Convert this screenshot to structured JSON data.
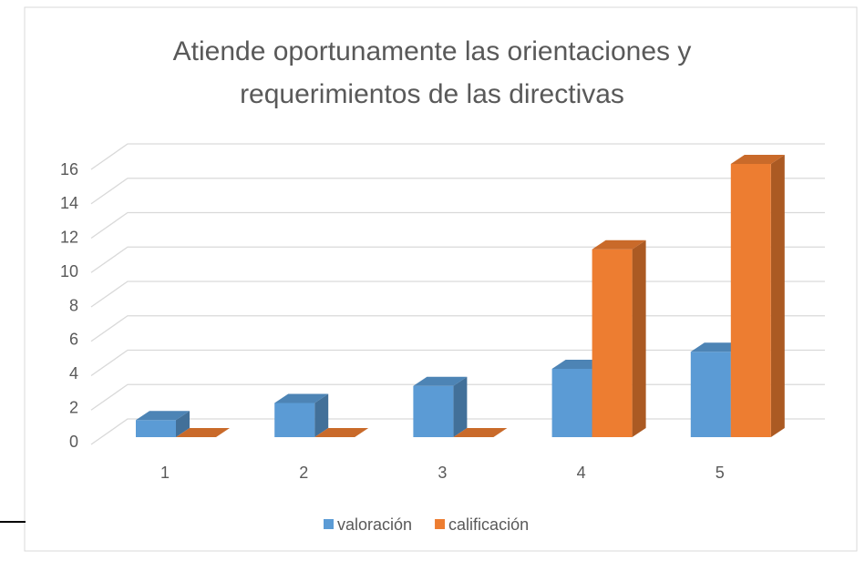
{
  "chart_data": {
    "type": "bar3d",
    "title": [
      "Atiende oportunamente las orientaciones y",
      "requerimientos de las directivas"
    ],
    "categories": [
      "1",
      "2",
      "3",
      "4",
      "5"
    ],
    "series": [
      {
        "name": "valoración",
        "color": "#5b9bd5",
        "values": [
          1,
          2,
          3,
          4,
          5
        ]
      },
      {
        "name": "calificación",
        "color": "#ed7d31",
        "values": [
          0,
          0,
          0,
          11,
          16
        ]
      }
    ],
    "ylim": [
      0,
      16
    ],
    "yticks": [
      0,
      2,
      4,
      6,
      8,
      10,
      12,
      14,
      16
    ],
    "grid": true,
    "legend": "bottom"
  }
}
